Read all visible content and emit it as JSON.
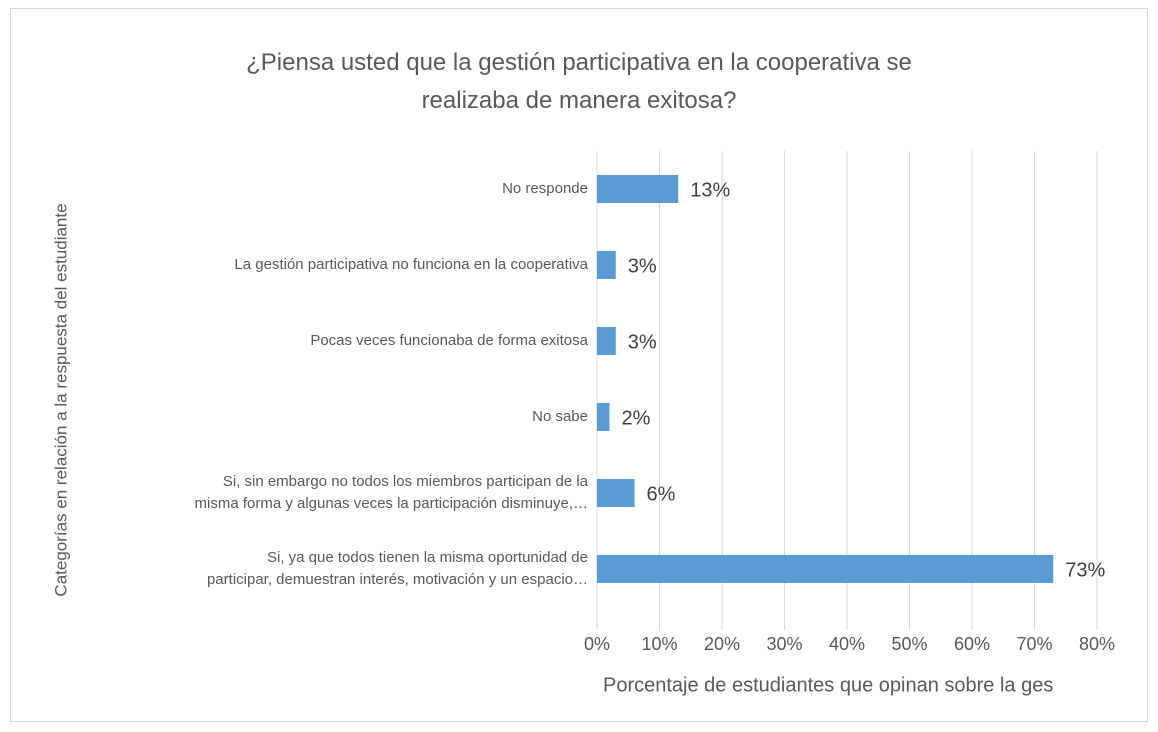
{
  "chart_data": {
    "type": "bar",
    "orientation": "horizontal",
    "title": "¿Piensa usted que la gestión participativa en la cooperativa se\nrealizaba de manera exitosa?",
    "x_label": "Porcentaje de estudiantes que opinan sobre la ges",
    "y_label": "Categorías en relación a la respuesta del estudiante",
    "categories": [
      "No responde",
      "La gestión participativa no funciona en la cooperativa",
      "Pocas veces funcionaba de forma exitosa",
      "No sabe",
      "Si, sin embargo no todos los miembros participan de la\nmisma forma y algunas veces la participación disminuye,…",
      "Si, ya que todos tienen la misma oportunidad de\nparticipar, demuestran interés, motivación y un espacio…"
    ],
    "values": [
      13,
      3,
      3,
      2,
      6,
      73
    ],
    "value_labels": [
      "13%",
      "3%",
      "3%",
      "2%",
      "6%",
      "73%"
    ],
    "color": "#5b9bd5",
    "xlim": [
      0,
      80
    ],
    "xticks": [
      {
        "value": 0,
        "label": "0%"
      },
      {
        "value": 10,
        "label": "10%"
      },
      {
        "value": 20,
        "label": "20%"
      },
      {
        "value": 30,
        "label": "30%"
      },
      {
        "value": 40,
        "label": "40%"
      },
      {
        "value": 50,
        "label": "50%"
      },
      {
        "value": 60,
        "label": "60%"
      },
      {
        "value": 70,
        "label": "70%"
      },
      {
        "value": 80,
        "label": "80%"
      }
    ],
    "grid": true
  }
}
